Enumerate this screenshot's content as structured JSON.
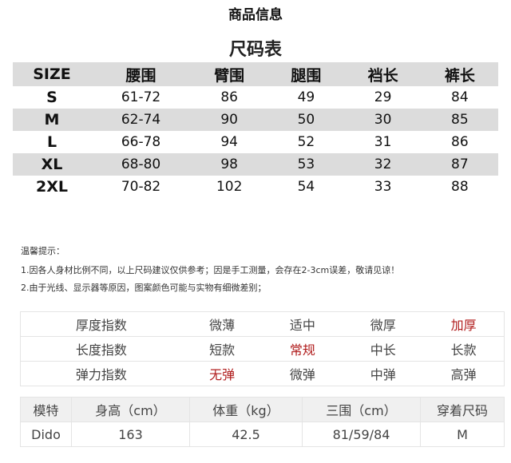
{
  "title": "商品信息",
  "size_chart": {
    "title": "尺码表",
    "headers": [
      "SIZE",
      "腰围",
      "臂围",
      "腿围",
      "裆长",
      "裤长"
    ],
    "rows": [
      [
        "S",
        "61-72",
        "86",
        "49",
        "29",
        "84"
      ],
      [
        "M",
        "62-74",
        "90",
        "50",
        "30",
        "85"
      ],
      [
        "L",
        "66-78",
        "94",
        "52",
        "31",
        "86"
      ],
      [
        "XL",
        "68-80",
        "98",
        "53",
        "32",
        "87"
      ],
      [
        "2XL",
        "70-82",
        "102",
        "54",
        "33",
        "88"
      ]
    ]
  },
  "tips": {
    "heading": "温馨提示：",
    "lines": [
      "1.因各人身材比例不同，以上尺码建议仅供参考；因是手工测量，会存在2-3cm误差，敬请见谅！",
      "2.由于光线、显示器等原因，图案颜色可能与实物有细微差别；"
    ]
  },
  "attributes": {
    "highlight_color": "#b01c1c",
    "rows": [
      {
        "label": "厚度指数",
        "options": [
          "微薄",
          "适中",
          "微厚",
          "加厚"
        ],
        "selected": 3
      },
      {
        "label": "长度指数",
        "options": [
          "短款",
          "常规",
          "中长",
          "长款"
        ],
        "selected": 1
      },
      {
        "label": "弹力指数",
        "options": [
          "无弹",
          "微弹",
          "中弹",
          "高弹"
        ],
        "selected": 0
      }
    ]
  },
  "model": {
    "headers": [
      "模特",
      "身高（cm）",
      "体重（kg）",
      "三围（cm）",
      "穿着尺码"
    ],
    "values": [
      "Dido",
      "163",
      "42.5",
      "81/59/84",
      "M"
    ]
  }
}
